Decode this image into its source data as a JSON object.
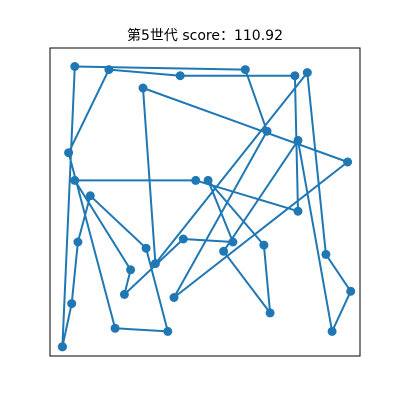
{
  "chart_data": {
    "type": "line",
    "title": "第5世代 score：110.92",
    "xlabel": "",
    "ylabel": "",
    "xlim": [
      0,
      1
    ],
    "ylim": [
      0,
      1
    ],
    "grid": false,
    "axes_ticks": false,
    "marker": "circle",
    "line_color": "#1f77b4",
    "series": [
      {
        "x": [
          0.04,
          0.07,
          0.09,
          0.13,
          0.31,
          0.38,
          0.21,
          0.06,
          0.19,
          0.42,
          0.79,
          0.8,
          0.47,
          0.08,
          0.26,
          0.24,
          0.43,
          0.59,
          0.51,
          0.69,
          0.71,
          0.56,
          0.8,
          0.91,
          0.97,
          0.89,
          0.83,
          0.34,
          0.3,
          0.96,
          0.4,
          0.7,
          0.63,
          0.08,
          0.04
        ],
        "y": [
          0.03,
          0.17,
          0.37,
          0.52,
          0.35,
          0.08,
          0.09,
          0.66,
          0.93,
          0.91,
          0.91,
          0.47,
          0.57,
          0.57,
          0.28,
          0.2,
          0.38,
          0.37,
          0.57,
          0.36,
          0.14,
          0.34,
          0.7,
          0.08,
          0.21,
          0.33,
          0.92,
          0.3,
          0.87,
          0.63,
          0.19,
          0.73,
          0.93,
          0.94,
          0.03
        ]
      }
    ]
  }
}
